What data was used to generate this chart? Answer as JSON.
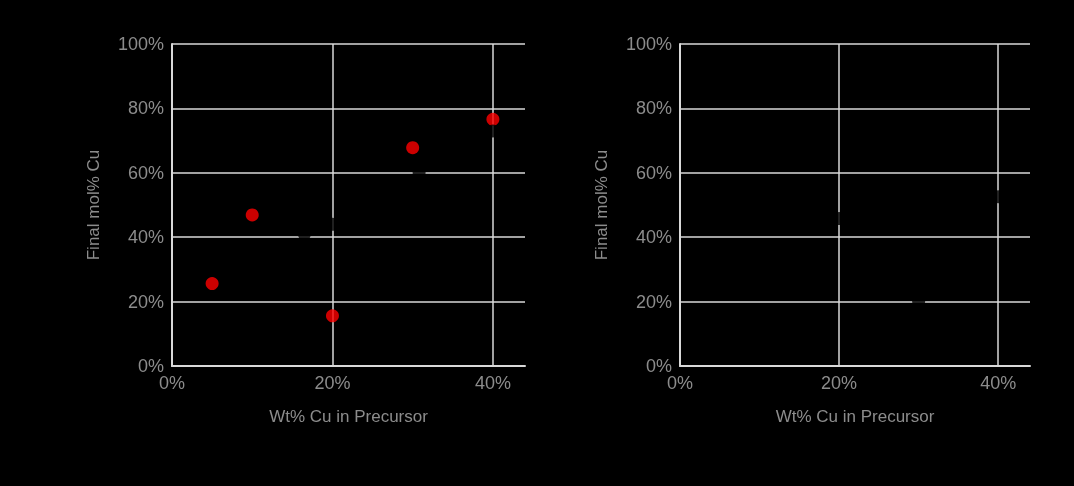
{
  "chart_data": [
    {
      "type": "scatter",
      "xlabel": "Wt% Cu in Precursor",
      "ylabel": "Final mol% Cu",
      "xlim": [
        0,
        44
      ],
      "ylim": [
        0,
        100
      ],
      "xticks": [
        {
          "value": 0,
          "label": "0%"
        },
        {
          "value": 20,
          "label": "20%"
        },
        {
          "value": 40,
          "label": "40%"
        }
      ],
      "yticks": [
        {
          "value": 0,
          "label": "0%"
        },
        {
          "value": 20,
          "label": "20%"
        },
        {
          "value": 40,
          "label": "40%"
        },
        {
          "value": 60,
          "label": "60%"
        },
        {
          "value": 80,
          "label": "80%"
        },
        {
          "value": 100,
          "label": "100%"
        }
      ],
      "grid": true,
      "marker": "circle",
      "series": [
        {
          "color": "#ff0000",
          "x": [
            5,
            10,
            20,
            30,
            40
          ],
          "values": [
            25.6,
            46.9,
            15.6,
            67.8,
            76.6
          ]
        },
        {
          "color": "#000000",
          "x": [
            16.5,
            20,
            30.8,
            40
          ],
          "values": [
            41,
            44,
            60,
            73
          ]
        }
      ]
    },
    {
      "type": "scatter",
      "xlabel": "Wt% Cu in Precursor",
      "ylabel": "Final mol% Cu",
      "xlim": [
        0,
        44
      ],
      "ylim": [
        0,
        100
      ],
      "xticks": [
        {
          "value": 0,
          "label": "0%"
        },
        {
          "value": 20,
          "label": "20%"
        },
        {
          "value": 40,
          "label": "40%"
        }
      ],
      "yticks": [
        {
          "value": 0,
          "label": "0%"
        },
        {
          "value": 20,
          "label": "20%"
        },
        {
          "value": 40,
          "label": "40%"
        },
        {
          "value": 60,
          "label": "60%"
        },
        {
          "value": 80,
          "label": "80%"
        },
        {
          "value": 100,
          "label": "100%"
        }
      ],
      "grid": true,
      "marker": "circle",
      "series": [
        {
          "color": "#000000",
          "x": [
            20,
            30,
            40
          ],
          "values": [
            45.8,
            20,
            52.6
          ]
        }
      ]
    }
  ]
}
